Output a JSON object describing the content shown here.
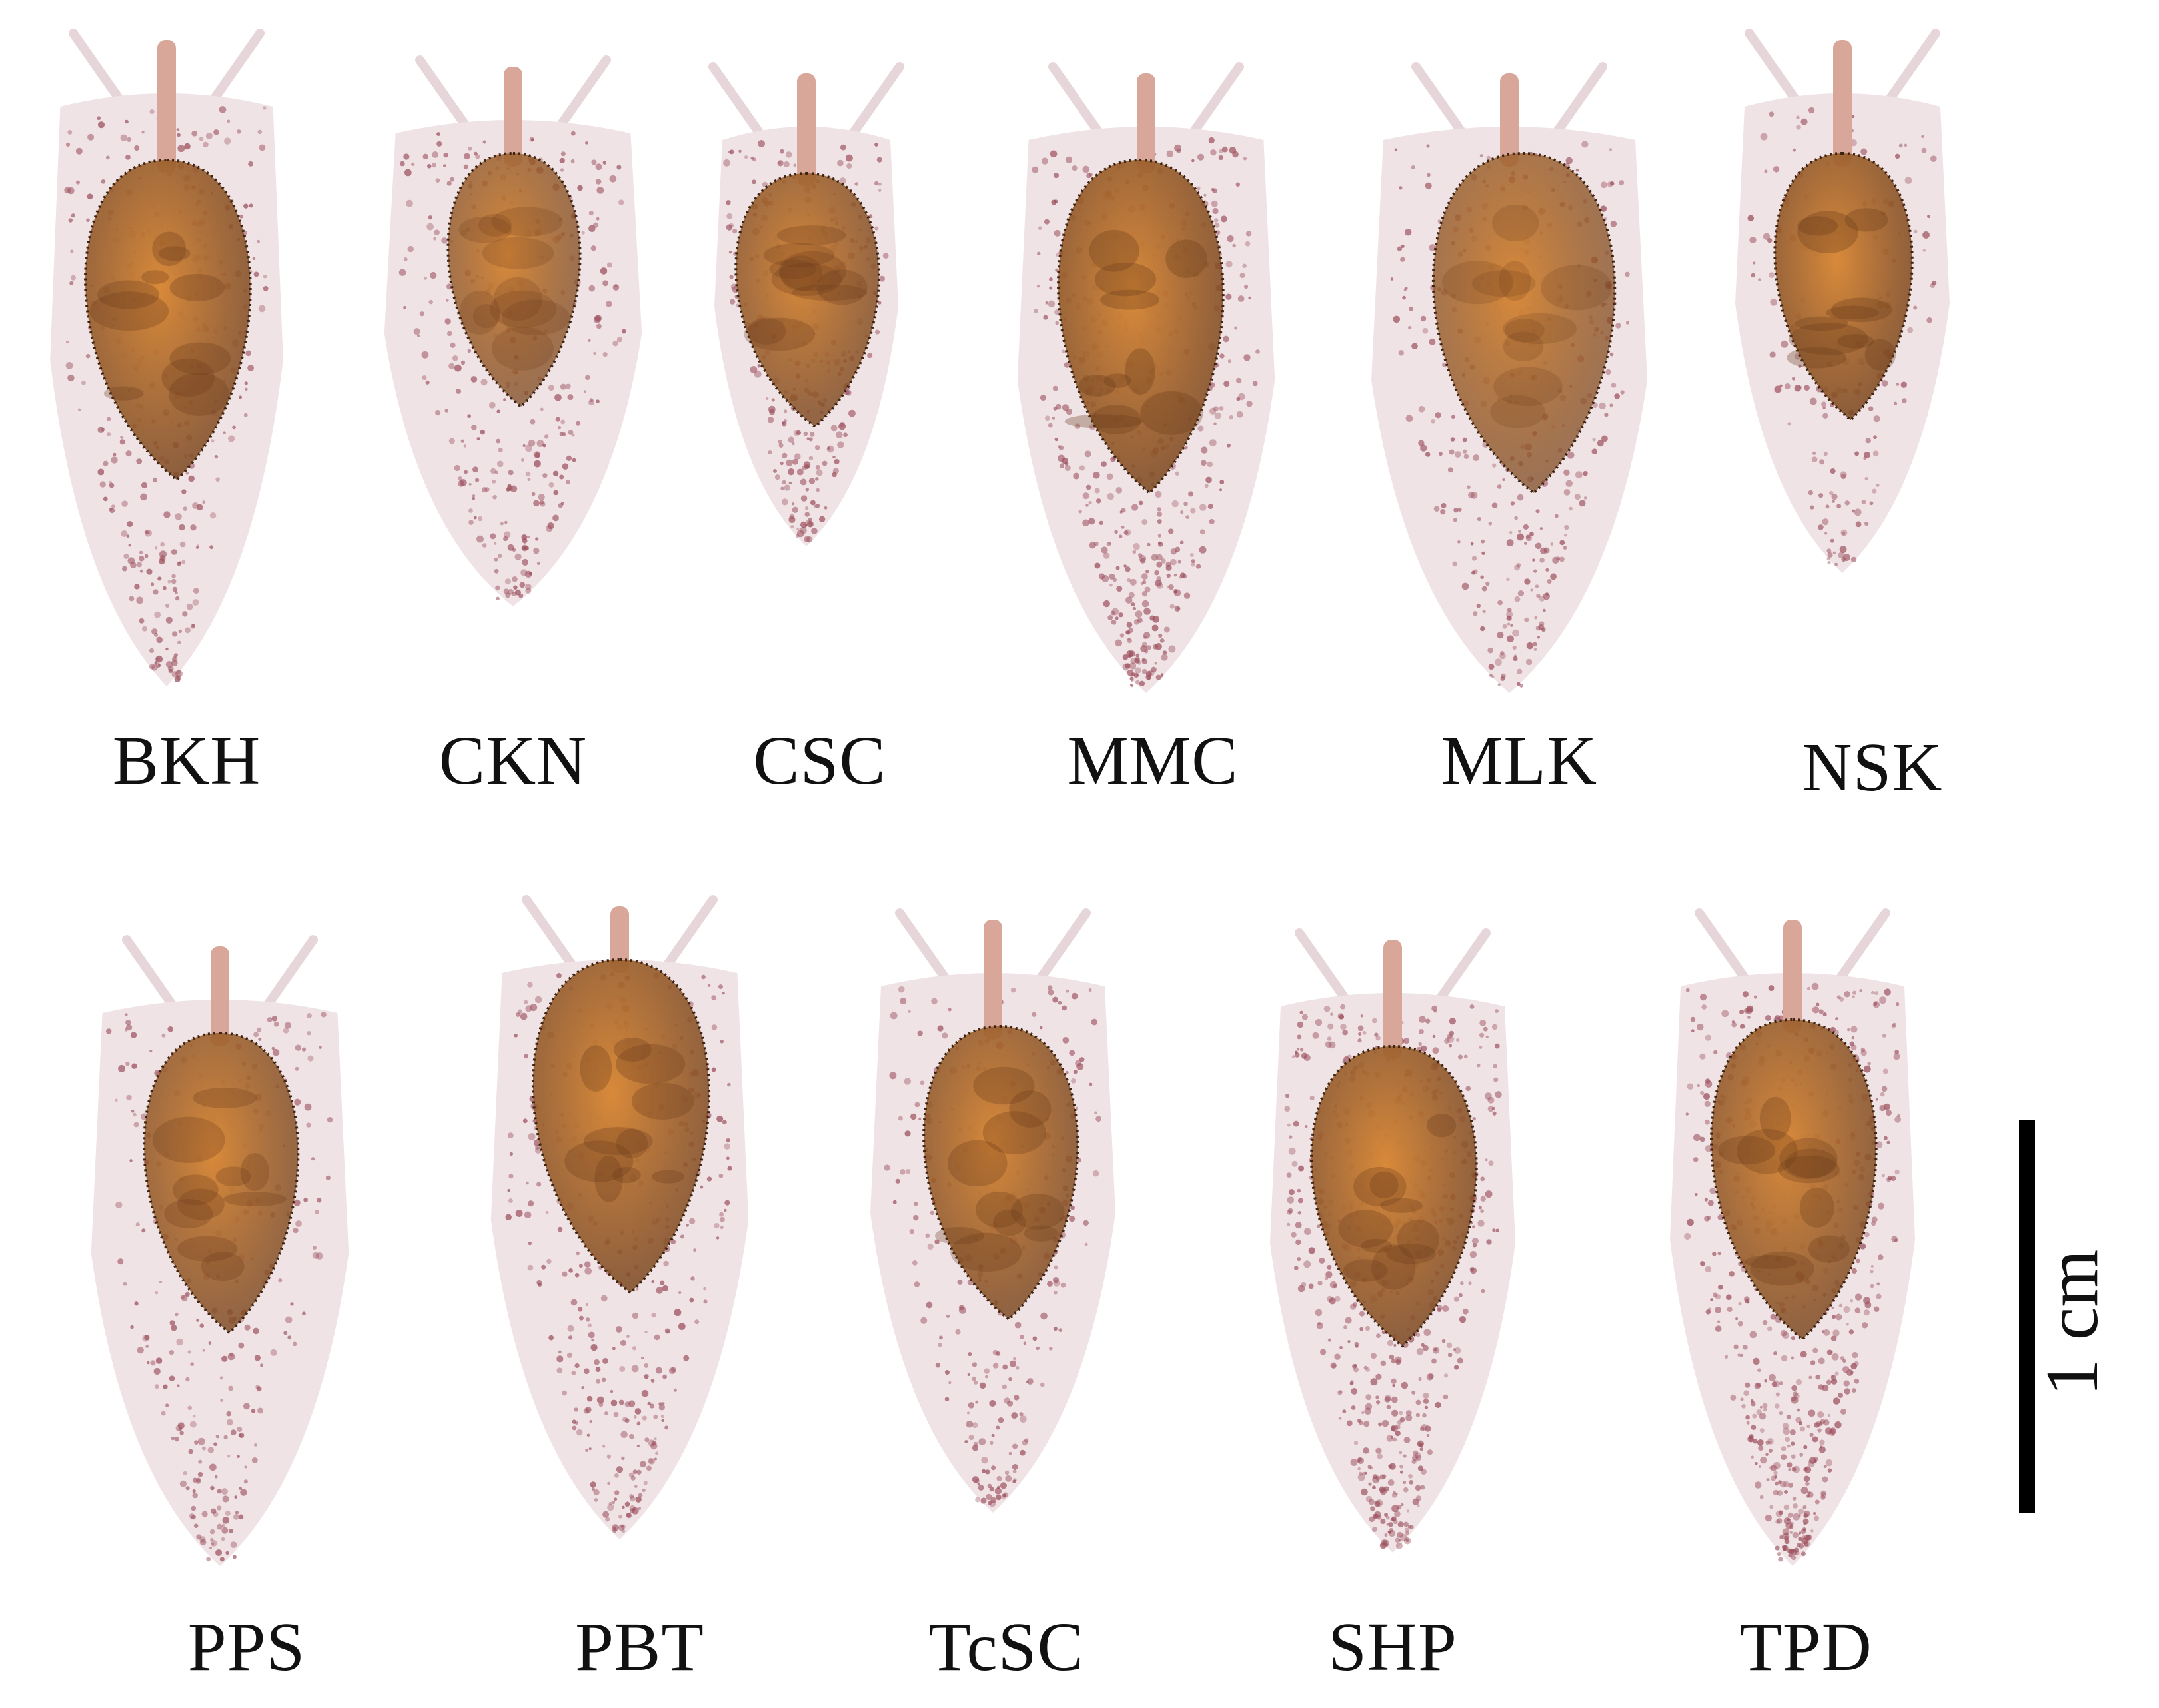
{
  "row1": [
    {
      "label": "BKH"
    },
    {
      "label": "CKN"
    },
    {
      "label": "CSC"
    },
    {
      "label": "MMC"
    },
    {
      "label": "MLK"
    },
    {
      "label": "NSK"
    }
  ],
  "row2": [
    {
      "label": "PPS"
    },
    {
      "label": "PBT"
    },
    {
      "label": "TcSC"
    },
    {
      "label": "SHP"
    },
    {
      "label": "TPD"
    }
  ],
  "scale": {
    "label": "1 cm"
  },
  "colors": {
    "background": "#ffffff",
    "foot": "#efe3e6",
    "speckle": "#9c4f5c",
    "shell_light": "#d98a3a",
    "shell_dark": "#6b3c1c",
    "scale_bar": "#000000"
  }
}
